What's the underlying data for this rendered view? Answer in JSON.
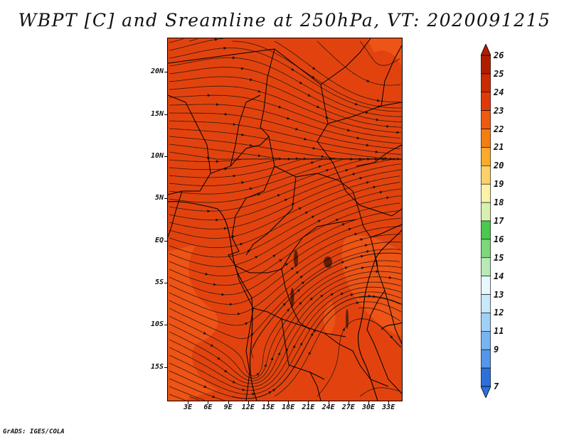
{
  "title": "WBPT [C] and Sreamline at 250hPa, VT: 2020091215",
  "credit": "GrADS: IGES/COLA",
  "map": {
    "lat_labels": [
      "20N",
      "15N",
      "10N",
      "5N",
      "EQ",
      "5S",
      "10S",
      "15S"
    ],
    "lat_values": [
      20,
      15,
      10,
      5,
      0,
      -5,
      -10,
      -15
    ],
    "lon_labels": [
      "3E",
      "6E",
      "9E",
      "12E",
      "15E",
      "18E",
      "21E",
      "24E",
      "27E",
      "30E",
      "33E"
    ],
    "lon_values": [
      3,
      6,
      9,
      12,
      15,
      18,
      21,
      24,
      27,
      30,
      33
    ],
    "lat_range": [
      -19,
      24
    ],
    "lon_range": [
      0,
      35
    ],
    "background_color": "#e2430e"
  },
  "colorbar": {
    "labels": [
      "26",
      "25",
      "24",
      "23",
      "22",
      "21",
      "20",
      "19",
      "18",
      "17",
      "16",
      "15",
      "14",
      "13",
      "12",
      "11",
      "9",
      "7"
    ],
    "colors": [
      "#b01e00",
      "#cc2a00",
      "#e13a0a",
      "#f05a10",
      "#f57d12",
      "#fbaa2a",
      "#fdd068",
      "#fdf2a8",
      "#d8f0b0",
      "#4cc84e",
      "#7ed87a",
      "#b8eab8",
      "#e8f8ff",
      "#c8e8fc",
      "#a0d0f8",
      "#78b4f2",
      "#5496ea",
      "#2c70dc"
    ]
  }
}
